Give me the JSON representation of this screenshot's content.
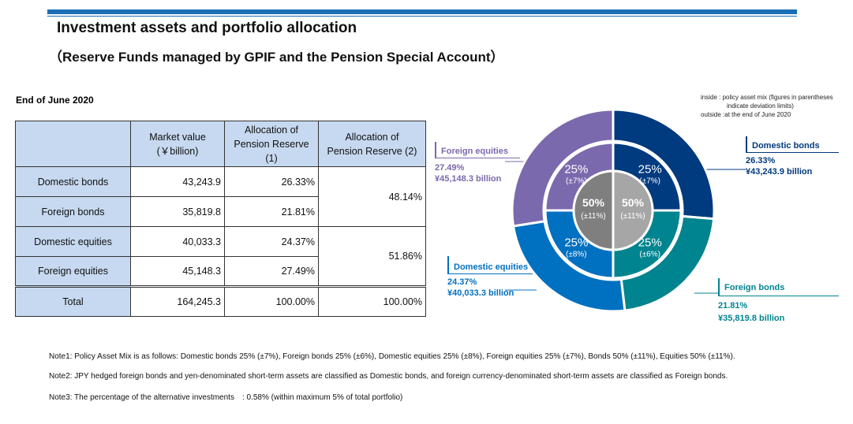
{
  "header": {
    "title": "Investment assets and portfolio allocation",
    "subtitle": "（Reserve Funds managed by GPIF and the Pension Special Account）",
    "as_of": "End of June 2020"
  },
  "table": {
    "columns": [
      "",
      "Market value\n(￥billion)",
      "Allocation of\nPension Reserve (1)",
      "Allocation of\nPension Reserve (2)"
    ],
    "col_labels": {
      "market_value": "Market value",
      "market_value_unit": "(￥billion)",
      "alloc1_a": "Allocation of",
      "alloc1_b": "Pension Reserve (1)",
      "alloc2_a": "Allocation of",
      "alloc2_b": "Pension Reserve (2)"
    },
    "rows": [
      {
        "asset": "Domestic bonds",
        "value": "43,243.9",
        "alloc1": "26.33%"
      },
      {
        "asset": "Foreign bonds",
        "value": "35,819.8",
        "alloc1": "21.81%"
      },
      {
        "asset": "Domestic equities",
        "value": "40,033.3",
        "alloc1": "24.37%"
      },
      {
        "asset": "Foreign equities",
        "value": "45,148.3",
        "alloc1": "27.49%"
      }
    ],
    "bonds_alloc2": "48.14%",
    "equities_alloc2": "51.86%",
    "total": {
      "asset": "Total",
      "value": "164,245.3",
      "alloc1": "100.00%",
      "alloc2": "100.00%"
    }
  },
  "chart_data": {
    "type": "pie",
    "legend": {
      "inside_label": "inside :",
      "inside_text": "policy asset mix (figures in parentheses",
      "inside_text2": "indicate deviation limits)",
      "outside_label": "outside :",
      "outside_text": "at the end of June 2020"
    },
    "outer": [
      {
        "name": "Domestic bonds",
        "value": 26.33,
        "pct": "26.33%",
        "amount": "¥43,243.9 billion",
        "color": "#003a7f"
      },
      {
        "name": "Foreign bonds",
        "value": 21.81,
        "pct": "21.81%",
        "amount": "¥35,819.8 billion",
        "color": "#00848f"
      },
      {
        "name": "Domestic equities",
        "value": 24.37,
        "pct": "24.37%",
        "amount": "¥40,033.3 billion",
        "color": "#0070c0"
      },
      {
        "name": "Foreign equities",
        "value": 27.49,
        "pct": "27.49%",
        "amount": "¥45,148.3 billion",
        "color": "#7b69ad"
      }
    ],
    "middle": [
      {
        "asset": "Domestic bonds",
        "value": 25,
        "label": "25%",
        "limit": "(±7%)"
      },
      {
        "asset": "Foreign bonds",
        "value": 25,
        "label": "25%",
        "limit": "(±6%)"
      },
      {
        "asset": "Domestic equities",
        "value": 25,
        "label": "25%",
        "limit": "(±8%)"
      },
      {
        "asset": "Foreign equities",
        "value": 25,
        "label": "25%",
        "limit": "(±7%)"
      }
    ],
    "inner": [
      {
        "asset": "Bonds",
        "value": 50,
        "label": "50%",
        "limit": "(±11%)",
        "color": "#a6a6a6"
      },
      {
        "asset": "Equities",
        "value": 50,
        "label": "50%",
        "limit": "(±11%)",
        "color": "#7f7f7f"
      }
    ]
  },
  "notes": [
    "Note1: Policy Asset Mix is as follows: Domestic bonds 25% (±7%), Foreign bonds 25% (±6%), Domestic equities 25% (±8%), Foreign equities 25% (±7%), Bonds 50% (±11%), Equities 50% (±11%).",
    "Note2: JPY hedged foreign bonds and yen-denominated short-term assets are classified as Domestic bonds, and foreign currency-denominated short-term assets are classified as Foreign bonds.",
    "Note3: The percentage of the alternative investments　: 0.58% (within maximum 5% of total portfolio)"
  ]
}
